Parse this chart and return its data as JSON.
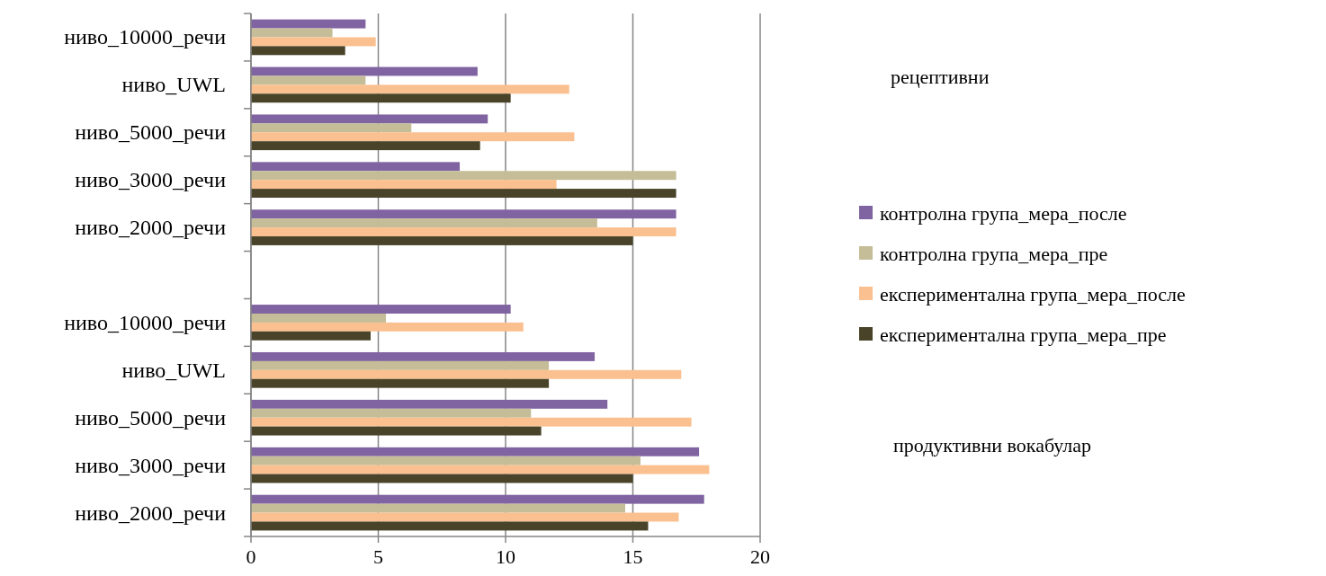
{
  "chart_data": {
    "type": "bar",
    "orientation": "horizontal",
    "categories": [
      "ниво_10000_речи",
      "ниво_UWL",
      "ниво_5000_речи",
      "ниво_3000_речи",
      "ниво_2000_речи",
      null,
      "ниво_10000_речи",
      "ниво_UWL",
      "ниво_5000_речи",
      "ниво_3000_речи",
      "ниво_2000_речи"
    ],
    "series": [
      {
        "name": "контролна група_мера_после",
        "color": "#8064a2",
        "values": [
          4.5,
          8.9,
          9.3,
          8.2,
          16.7,
          null,
          10.2,
          13.5,
          14.0,
          17.6,
          17.8
        ]
      },
      {
        "name": "контролна група_мера_пре",
        "color": "#c4bd97",
        "values": [
          3.2,
          4.5,
          6.3,
          16.7,
          13.6,
          null,
          5.3,
          11.7,
          11.0,
          15.3,
          14.7
        ]
      },
      {
        "name": "експериментална група_мера_после",
        "color": "#fac090",
        "values": [
          4.9,
          12.5,
          12.7,
          12.0,
          16.7,
          null,
          10.7,
          16.9,
          17.3,
          18.0,
          16.8
        ]
      },
      {
        "name": "експериментална група_мера_пре",
        "color": "#494429",
        "values": [
          3.7,
          10.2,
          9.0,
          16.7,
          15.0,
          null,
          4.7,
          11.7,
          11.4,
          15.0,
          15.6
        ]
      }
    ],
    "xlim": [
      0,
      20
    ],
    "xticks": [
      0,
      5,
      10,
      15,
      20
    ],
    "grid": "x",
    "legend": "right",
    "annotations": [
      "рецептивни",
      "продуктивни вокабулар"
    ]
  }
}
